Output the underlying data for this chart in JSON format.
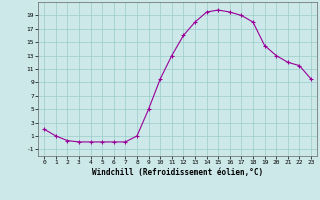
{
  "x": [
    0,
    1,
    2,
    3,
    4,
    5,
    6,
    7,
    8,
    9,
    10,
    11,
    12,
    13,
    14,
    15,
    16,
    17,
    18,
    19,
    20,
    21,
    22,
    23
  ],
  "y": [
    2,
    1,
    0.3,
    0.1,
    0.1,
    0.1,
    0.1,
    0.1,
    1,
    5,
    9.5,
    13,
    16,
    18,
    19.5,
    19.8,
    19.5,
    19,
    18,
    14.5,
    13,
    12,
    11.5,
    9.5
  ],
  "color": "#990099",
  "xlabel": "Windchill (Refroidissement éolien,°C)",
  "yticks": [
    -1,
    1,
    3,
    5,
    7,
    9,
    11,
    13,
    15,
    17,
    19
  ],
  "xticks": [
    0,
    1,
    2,
    3,
    4,
    5,
    6,
    7,
    8,
    9,
    10,
    11,
    12,
    13,
    14,
    15,
    16,
    17,
    18,
    19,
    20,
    21,
    22,
    23
  ],
  "ylim": [
    -2,
    21
  ],
  "xlim": [
    -0.5,
    23.5
  ],
  "bg_color": "#cce8e8",
  "grid_color": "#99cccc",
  "markersize": 3.5,
  "linewidth": 0.8
}
